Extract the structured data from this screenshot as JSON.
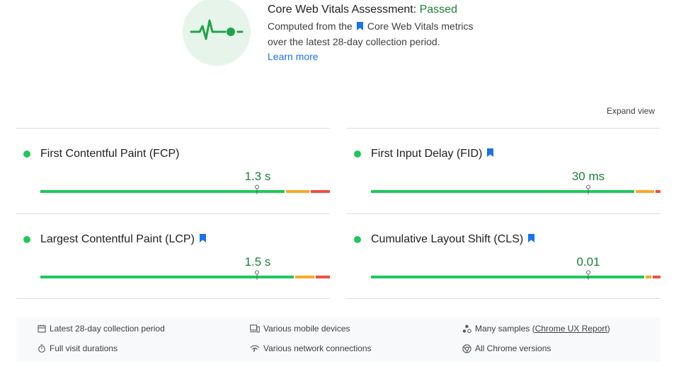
{
  "assessment": {
    "title_prefix": "Core Web Vitals Assessment: ",
    "status": "Passed",
    "desc_line1_before": "Computed from the",
    "desc_line1_after": "Core Web Vitals metrics",
    "desc_line2": "over the latest 28-day collection period.",
    "learn_more": "Learn more",
    "icon": "heartbeat-icon"
  },
  "expand_view": "Expand view",
  "colors": {
    "good": "#1ec85a",
    "needs_improvement": "#f9a825",
    "poor": "#f04e3c",
    "passed_text": "#188038",
    "link": "#1a73e8",
    "flag": "#1a73e8"
  },
  "metrics": [
    {
      "name": "First Contentful Paint (FCP)",
      "value": "1.3 s",
      "core_vital": false,
      "status": "good",
      "marker_fraction": 0.749,
      "distribution": [
        0.843,
        0.087,
        0.07
      ]
    },
    {
      "name": "First Input Delay (FID)",
      "value": "30 ms",
      "core_vital": true,
      "status": "good",
      "marker_fraction": 0.75,
      "distribution": [
        0.909,
        0.069,
        0.022
      ]
    },
    {
      "name": "Largest Contentful Paint (LCP)",
      "value": "1.5 s",
      "core_vital": true,
      "status": "good",
      "marker_fraction": 0.749,
      "distribution": [
        0.876,
        0.069,
        0.055
      ]
    },
    {
      "name": "Cumulative Layout Shift (CLS)",
      "value": "0.01",
      "core_vital": true,
      "status": "good",
      "marker_fraction": 0.75,
      "distribution": [
        0.943,
        0.026,
        0.031
      ]
    }
  ],
  "footer": {
    "collection_period": "Latest 28-day collection period",
    "visit_durations": "Full visit durations",
    "devices": "Various mobile devices",
    "network": "Various network connections",
    "samples_before": "Many samples (",
    "samples_link": "Chrome UX Report",
    "samples_after": ")",
    "chrome_versions": "All Chrome versions"
  }
}
